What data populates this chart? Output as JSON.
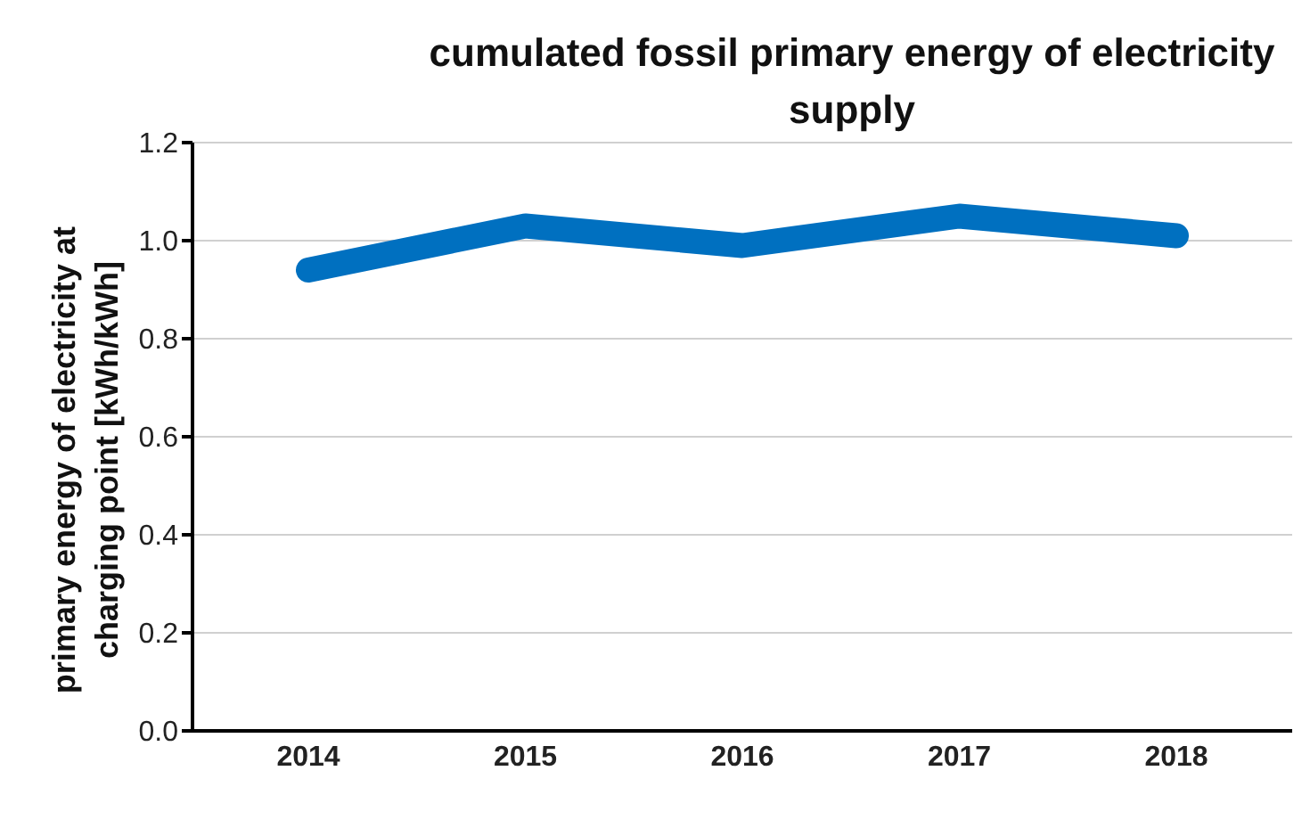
{
  "chart_data": {
    "type": "line",
    "title": "cumulated fossil primary energy of electricity supply",
    "ylabel": "primary energy of electricity at charging point [kWh/kWh]",
    "categories": [
      "2014",
      "2015",
      "2016",
      "2017",
      "2018"
    ],
    "series": [
      {
        "color": "#0070c0",
        "values": [
          0.94,
          1.03,
          0.99,
          1.05,
          1.01
        ]
      }
    ],
    "ylim": [
      0,
      1.2
    ],
    "yticks": [
      {
        "value": 0,
        "label": "0.0"
      },
      0.2,
      0.4,
      0.6,
      0.8,
      {
        "value": 1,
        "label": "1.0"
      },
      1.2
    ],
    "grid": "y",
    "legend": false
  }
}
